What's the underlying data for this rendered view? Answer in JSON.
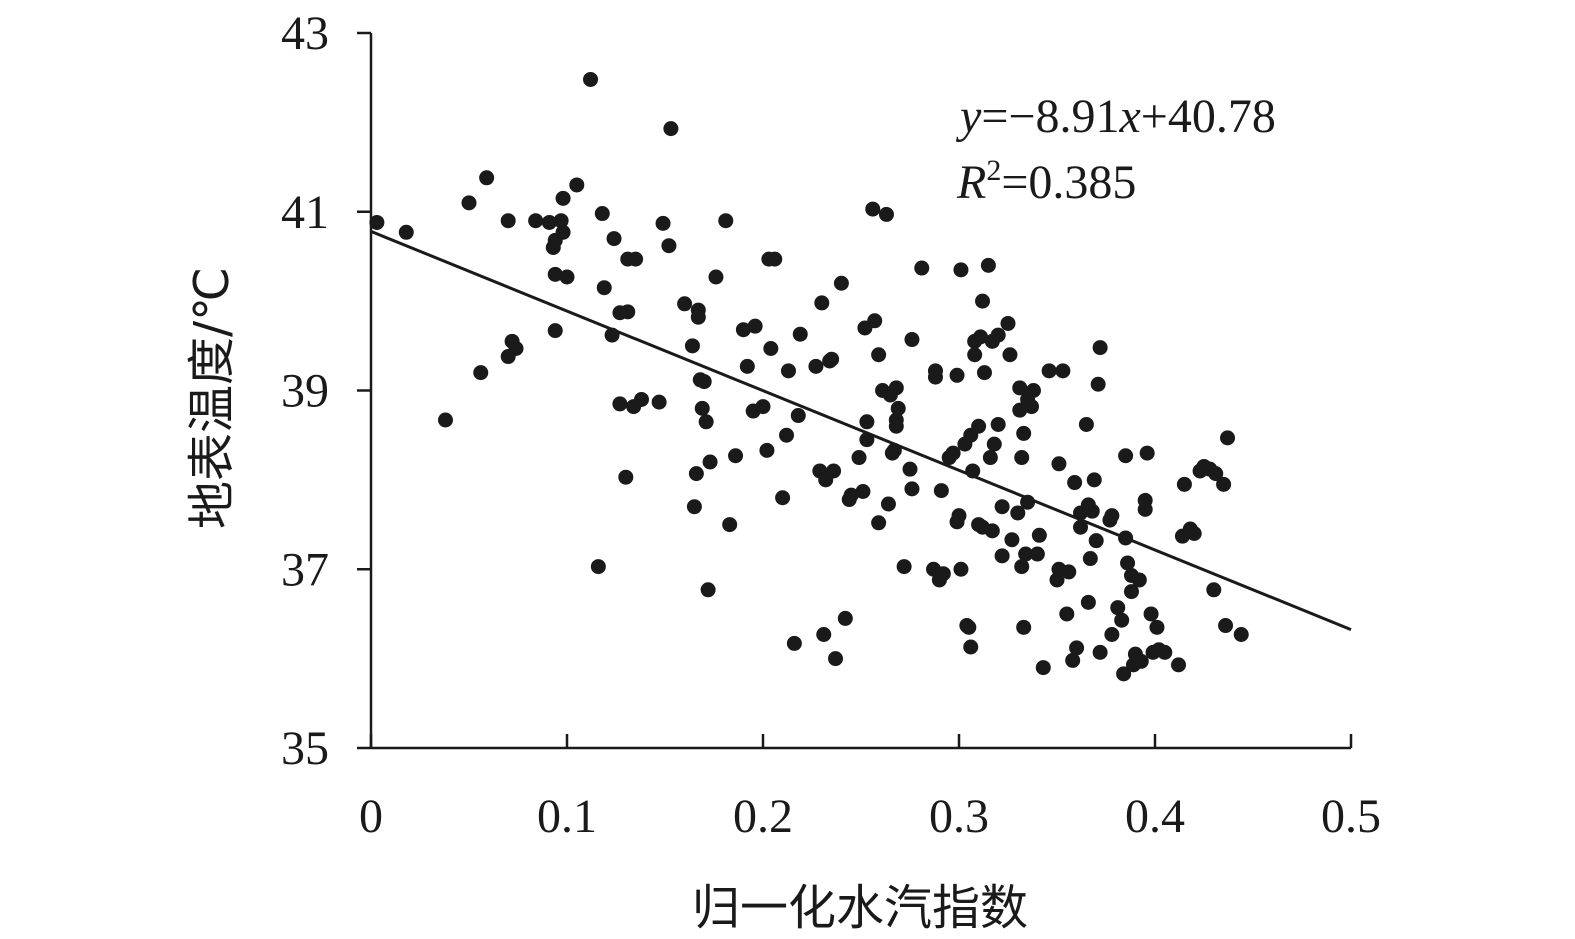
{
  "chart_data": {
    "type": "scatter",
    "xlabel": "归一化水汽指数",
    "ylabel": "地表温度/℃",
    "xlim": [
      0,
      0.5
    ],
    "ylim": [
      35,
      43
    ],
    "x_ticks": [
      "0",
      "0.1",
      "0.2",
      "0.3",
      "0.4",
      "0.5"
    ],
    "y_ticks": [
      "35",
      "37",
      "39",
      "41",
      "43"
    ],
    "grid": false,
    "equation": "y=−8.91x+40.78",
    "equation_parts": {
      "y": "y",
      "eq": "=−8.91",
      "x": "x",
      "rest": "+40.78"
    },
    "r_squared": "R2=0.385",
    "r_squared_parts": {
      "r": "R",
      "sup": "2",
      "rest": "=0.385"
    },
    "trendline": {
      "slope": -8.91,
      "intercept": 40.78
    },
    "colors": {
      "point": "#1a1a1a",
      "line": "#1a1a1a",
      "axis": "#1a1a1a"
    },
    "points": [
      [
        0.003,
        40.88
      ],
      [
        0.018,
        40.77
      ],
      [
        0.038,
        38.67
      ],
      [
        0.05,
        41.1
      ],
      [
        0.056,
        39.2
      ],
      [
        0.059,
        41.38
      ],
      [
        0.07,
        39.38
      ],
      [
        0.07,
        40.9
      ],
      [
        0.072,
        39.55
      ],
      [
        0.074,
        39.47
      ],
      [
        0.084,
        40.9
      ],
      [
        0.091,
        40.88
      ],
      [
        0.093,
        40.6
      ],
      [
        0.094,
        40.3
      ],
      [
        0.094,
        40.68
      ],
      [
        0.094,
        39.67
      ],
      [
        0.097,
        40.9
      ],
      [
        0.098,
        40.77
      ],
      [
        0.098,
        41.15
      ],
      [
        0.1,
        40.27
      ],
      [
        0.105,
        41.3
      ],
      [
        0.112,
        42.48
      ],
      [
        0.116,
        37.03
      ],
      [
        0.118,
        40.98
      ],
      [
        0.119,
        40.15
      ],
      [
        0.123,
        39.62
      ],
      [
        0.124,
        40.7
      ],
      [
        0.127,
        38.85
      ],
      [
        0.127,
        39.87
      ],
      [
        0.13,
        38.03
      ],
      [
        0.131,
        39.88
      ],
      [
        0.131,
        40.47
      ],
      [
        0.134,
        38.82
      ],
      [
        0.135,
        40.47
      ],
      [
        0.138,
        38.9
      ],
      [
        0.147,
        38.87
      ],
      [
        0.149,
        40.87
      ],
      [
        0.152,
        40.62
      ],
      [
        0.153,
        41.93
      ],
      [
        0.16,
        39.97
      ],
      [
        0.164,
        39.5
      ],
      [
        0.165,
        37.7
      ],
      [
        0.166,
        38.07
      ],
      [
        0.167,
        39.9
      ],
      [
        0.167,
        39.82
      ],
      [
        0.168,
        39.12
      ],
      [
        0.169,
        38.8
      ],
      [
        0.17,
        39.1
      ],
      [
        0.171,
        38.65
      ],
      [
        0.172,
        36.77
      ],
      [
        0.173,
        38.2
      ],
      [
        0.176,
        40.27
      ],
      [
        0.181,
        40.9
      ],
      [
        0.183,
        37.5
      ],
      [
        0.186,
        38.27
      ],
      [
        0.19,
        39.68
      ],
      [
        0.192,
        39.27
      ],
      [
        0.195,
        38.77
      ],
      [
        0.196,
        39.72
      ],
      [
        0.2,
        38.82
      ],
      [
        0.202,
        38.33
      ],
      [
        0.203,
        40.47
      ],
      [
        0.204,
        39.47
      ],
      [
        0.206,
        40.47
      ],
      [
        0.21,
        37.8
      ],
      [
        0.212,
        38.5
      ],
      [
        0.213,
        39.22
      ],
      [
        0.216,
        36.17
      ],
      [
        0.218,
        38.72
      ],
      [
        0.219,
        39.63
      ],
      [
        0.227,
        39.27
      ],
      [
        0.229,
        38.1
      ],
      [
        0.23,
        39.98
      ],
      [
        0.231,
        36.27
      ],
      [
        0.232,
        38.0
      ],
      [
        0.234,
        39.33
      ],
      [
        0.235,
        39.35
      ],
      [
        0.236,
        38.1
      ],
      [
        0.237,
        36.0
      ],
      [
        0.24,
        40.2
      ],
      [
        0.242,
        36.45
      ],
      [
        0.244,
        37.78
      ],
      [
        0.245,
        37.83
      ],
      [
        0.249,
        38.25
      ],
      [
        0.251,
        37.87
      ],
      [
        0.252,
        39.7
      ],
      [
        0.253,
        38.45
      ],
      [
        0.253,
        38.65
      ],
      [
        0.256,
        41.03
      ],
      [
        0.257,
        39.78
      ],
      [
        0.259,
        37.52
      ],
      [
        0.259,
        39.4
      ],
      [
        0.261,
        39.0
      ],
      [
        0.263,
        40.97
      ],
      [
        0.264,
        37.73
      ],
      [
        0.265,
        38.95
      ],
      [
        0.266,
        38.3
      ],
      [
        0.267,
        38.33
      ],
      [
        0.268,
        38.6
      ],
      [
        0.268,
        39.03
      ],
      [
        0.268,
        38.67
      ],
      [
        0.269,
        38.8
      ],
      [
        0.272,
        37.03
      ],
      [
        0.275,
        38.12
      ],
      [
        0.276,
        39.57
      ],
      [
        0.276,
        37.9
      ],
      [
        0.281,
        40.37
      ],
      [
        0.287,
        37.0
      ],
      [
        0.288,
        39.22
      ],
      [
        0.288,
        39.15
      ],
      [
        0.29,
        36.88
      ],
      [
        0.291,
        37.88
      ],
      [
        0.292,
        36.95
      ],
      [
        0.295,
        38.25
      ],
      [
        0.297,
        38.3
      ],
      [
        0.299,
        39.17
      ],
      [
        0.299,
        37.53
      ],
      [
        0.3,
        37.6
      ],
      [
        0.301,
        37.0
      ],
      [
        0.301,
        40.35
      ],
      [
        0.303,
        38.4
      ],
      [
        0.304,
        36.37
      ],
      [
        0.305,
        36.35
      ],
      [
        0.306,
        36.13
      ],
      [
        0.306,
        38.5
      ],
      [
        0.307,
        38.1
      ],
      [
        0.308,
        39.55
      ],
      [
        0.308,
        39.4
      ],
      [
        0.31,
        38.6
      ],
      [
        0.31,
        37.5
      ],
      [
        0.311,
        39.6
      ],
      [
        0.312,
        40.0
      ],
      [
        0.312,
        37.47
      ],
      [
        0.313,
        39.2
      ],
      [
        0.315,
        40.4
      ],
      [
        0.316,
        38.25
      ],
      [
        0.317,
        37.43
      ],
      [
        0.317,
        39.55
      ],
      [
        0.318,
        38.4
      ],
      [
        0.32,
        38.62
      ],
      [
        0.32,
        39.62
      ],
      [
        0.322,
        37.15
      ],
      [
        0.322,
        37.7
      ],
      [
        0.325,
        39.75
      ],
      [
        0.326,
        39.4
      ],
      [
        0.327,
        37.33
      ],
      [
        0.33,
        37.63
      ],
      [
        0.331,
        39.03
      ],
      [
        0.331,
        38.78
      ],
      [
        0.332,
        38.25
      ],
      [
        0.332,
        37.03
      ],
      [
        0.333,
        38.52
      ],
      [
        0.333,
        36.35
      ],
      [
        0.334,
        37.17
      ],
      [
        0.335,
        38.9
      ],
      [
        0.335,
        37.75
      ],
      [
        0.337,
        38.82
      ],
      [
        0.338,
        39.0
      ],
      [
        0.34,
        37.17
      ],
      [
        0.341,
        37.38
      ],
      [
        0.343,
        35.9
      ],
      [
        0.346,
        39.22
      ],
      [
        0.35,
        36.88
      ],
      [
        0.351,
        38.18
      ],
      [
        0.351,
        37.0
      ],
      [
        0.353,
        39.22
      ],
      [
        0.355,
        36.5
      ],
      [
        0.356,
        36.97
      ],
      [
        0.358,
        35.98
      ],
      [
        0.359,
        37.97
      ],
      [
        0.36,
        36.12
      ],
      [
        0.362,
        37.47
      ],
      [
        0.362,
        37.63
      ],
      [
        0.365,
        38.62
      ],
      [
        0.366,
        36.63
      ],
      [
        0.366,
        37.72
      ],
      [
        0.367,
        37.12
      ],
      [
        0.368,
        37.65
      ],
      [
        0.369,
        38.0
      ],
      [
        0.37,
        37.32
      ],
      [
        0.371,
        39.07
      ],
      [
        0.372,
        39.48
      ],
      [
        0.372,
        36.07
      ],
      [
        0.377,
        37.55
      ],
      [
        0.378,
        37.6
      ],
      [
        0.378,
        36.27
      ],
      [
        0.381,
        36.57
      ],
      [
        0.383,
        36.43
      ],
      [
        0.384,
        35.83
      ],
      [
        0.385,
        37.35
      ],
      [
        0.385,
        38.27
      ],
      [
        0.386,
        37.07
      ],
      [
        0.388,
        36.75
      ],
      [
        0.388,
        36.93
      ],
      [
        0.389,
        35.93
      ],
      [
        0.39,
        36.05
      ],
      [
        0.392,
        36.88
      ],
      [
        0.393,
        35.97
      ],
      [
        0.395,
        37.67
      ],
      [
        0.395,
        37.77
      ],
      [
        0.396,
        38.3
      ],
      [
        0.398,
        36.5
      ],
      [
        0.399,
        36.07
      ],
      [
        0.401,
        36.35
      ],
      [
        0.402,
        36.1
      ],
      [
        0.405,
        36.07
      ],
      [
        0.412,
        35.93
      ],
      [
        0.414,
        37.37
      ],
      [
        0.415,
        37.95
      ],
      [
        0.418,
        37.45
      ],
      [
        0.42,
        37.4
      ],
      [
        0.423,
        38.1
      ],
      [
        0.425,
        38.15
      ],
      [
        0.428,
        38.12
      ],
      [
        0.43,
        36.77
      ],
      [
        0.431,
        38.07
      ],
      [
        0.435,
        37.95
      ],
      [
        0.436,
        36.37
      ],
      [
        0.437,
        38.47
      ],
      [
        0.444,
        36.27
      ]
    ]
  }
}
